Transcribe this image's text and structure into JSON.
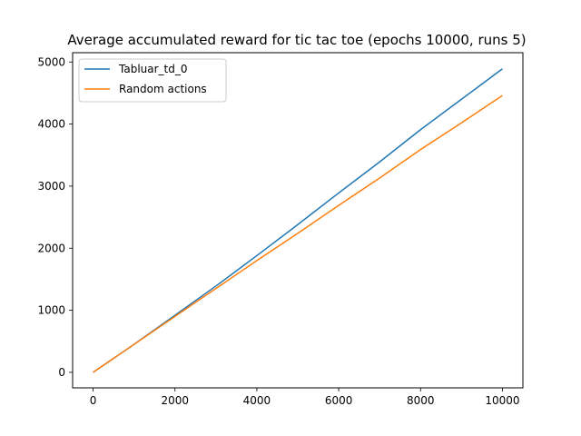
{
  "chart_data": {
    "type": "line",
    "title": "Average accumulated reward for tic tac toe (epochs 10000, runs 5)",
    "xlabel": "",
    "ylabel": "",
    "xlim": [
      -500,
      10500
    ],
    "ylim": [
      -250,
      5150
    ],
    "xticks": [
      0,
      2000,
      4000,
      6000,
      8000,
      10000
    ],
    "yticks": [
      0,
      1000,
      2000,
      3000,
      4000,
      5000
    ],
    "grid": false,
    "legend_position": "top-left",
    "series": [
      {
        "name": "Tabluar_td_0",
        "color": "#1f77b4",
        "x": [
          0,
          1000,
          2000,
          3000,
          4000,
          5000,
          6000,
          7000,
          8000,
          9000,
          10000
        ],
        "y": [
          0,
          450,
          920,
          1390,
          1880,
          2380,
          2890,
          3390,
          3910,
          4400,
          4890
        ]
      },
      {
        "name": "Random actions",
        "color": "#ff7f0e",
        "x": [
          0,
          1000,
          2000,
          3000,
          4000,
          5000,
          6000,
          7000,
          8000,
          9000,
          10000
        ],
        "y": [
          0,
          450,
          900,
          1350,
          1800,
          2240,
          2690,
          3130,
          3590,
          4020,
          4460
        ]
      }
    ]
  }
}
